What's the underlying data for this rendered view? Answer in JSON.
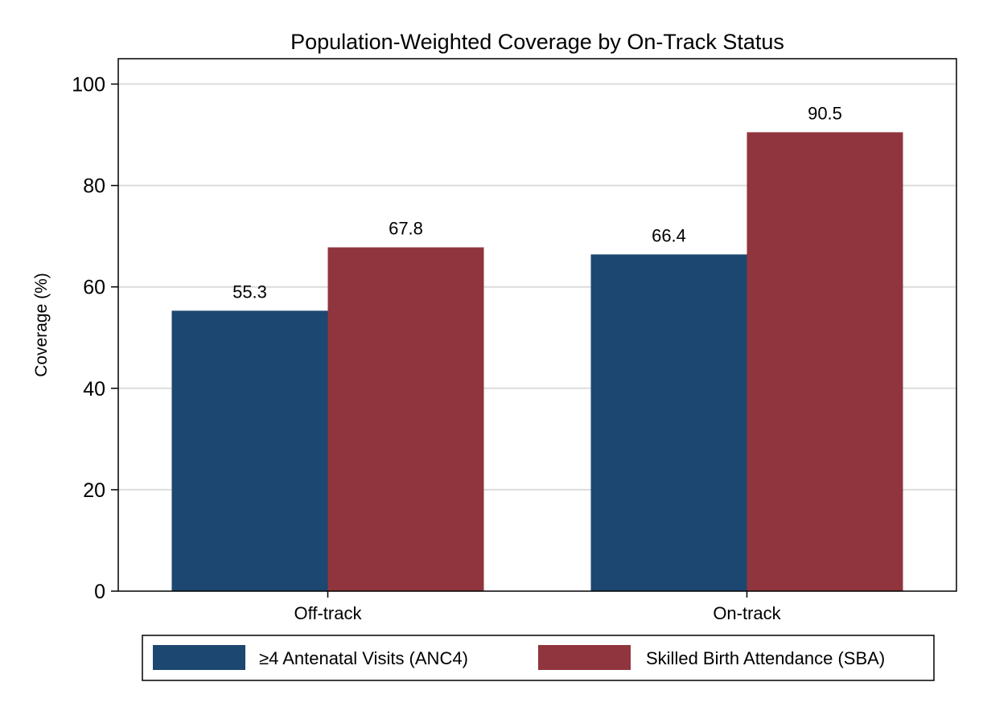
{
  "chart_data": {
    "type": "bar",
    "title": "Population-Weighted Coverage by On-Track Status",
    "xlabel": "",
    "ylabel": "Coverage (%)",
    "ylim": [
      0,
      105
    ],
    "yticks": [
      0,
      20,
      40,
      60,
      80,
      100
    ],
    "grid": true,
    "legend_position": "bottom",
    "categories": [
      "Off-track",
      "On-track"
    ],
    "series": [
      {
        "name": "≥4 Antenatal Visits (ANC4)",
        "color": "#1c4770",
        "values": [
          55.3,
          66.4
        ],
        "labels": [
          "55.3",
          "66.4"
        ]
      },
      {
        "name": "Skilled Birth Attendance (SBA)",
        "color": "#90353d",
        "values": [
          67.8,
          90.5
        ],
        "labels": [
          "67.8",
          "90.5"
        ]
      }
    ]
  }
}
